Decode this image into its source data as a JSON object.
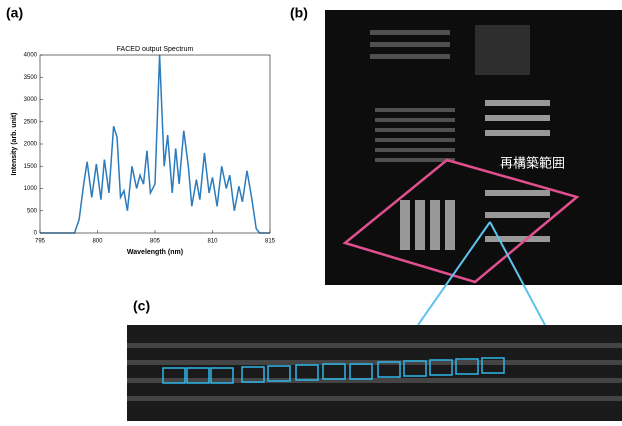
{
  "labels": {
    "a": "(a)",
    "b": "(b)",
    "c": "(c)"
  },
  "annotation": "再構築範囲",
  "chart_data": {
    "type": "line",
    "title": "FACED output Spectrum",
    "x_label": "Wavelength (nm)",
    "y_label": "Intensity (arb. unit)",
    "x": [
      795,
      798,
      798.4,
      798.8,
      799.1,
      799.5,
      799.9,
      800.3,
      800.6,
      801.0,
      801.4,
      801.7,
      802.0,
      802.3,
      802.6,
      803.0,
      803.4,
      803.7,
      804.0,
      804.3,
      804.6,
      805.0,
      805.4,
      805.8,
      806.1,
      806.5,
      806.8,
      807.1,
      807.5,
      807.9,
      808.2,
      808.6,
      808.9,
      809.3,
      809.7,
      810.0,
      810.4,
      810.8,
      811.2,
      811.5,
      811.9,
      812.3,
      812.6,
      813.0,
      813.4,
      813.8,
      814.1,
      815
    ],
    "series": [
      {
        "name": "FACED output Spectrum",
        "color": "#2b7bbd",
        "values": [
          0,
          0,
          300,
          1100,
          1600,
          800,
          1550,
          750,
          1650,
          900,
          2400,
          2150,
          800,
          950,
          500,
          1500,
          1000,
          1300,
          1100,
          1850,
          900,
          1100,
          4000,
          1500,
          2200,
          900,
          1900,
          1100,
          2300,
          1500,
          600,
          1200,
          750,
          1800,
          900,
          1250,
          600,
          1500,
          1000,
          1300,
          500,
          1050,
          700,
          1400,
          800,
          100,
          0,
          0
        ]
      }
    ],
    "xlim": [
      795,
      815
    ],
    "xticks": [
      795,
      800,
      805,
      810,
      815
    ],
    "ylim": [
      0,
      4000
    ],
    "yticks": [
      0,
      500,
      1000,
      1500,
      2000,
      2500,
      3000,
      3500,
      4000
    ],
    "grid": false
  }
}
